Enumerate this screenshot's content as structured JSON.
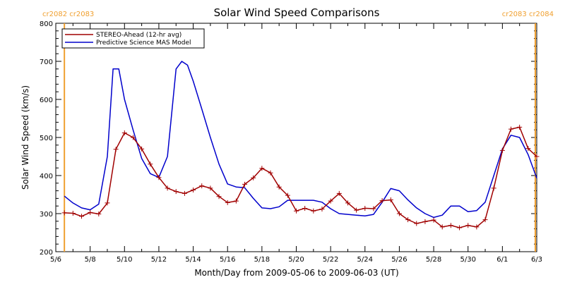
{
  "chart_data": {
    "type": "line",
    "title": "Solar Wind Speed Comparisons",
    "xlabel": "Month/Day from 2009-05-06 to 2009-06-03 (UT)",
    "ylabel": "Solar Wind Speed (km/s)",
    "xlim": [
      "2009-05-06",
      "2009-06-03"
    ],
    "ylim": [
      200,
      800
    ],
    "y_ticks": [
      200,
      300,
      400,
      500,
      600,
      700,
      800
    ],
    "x_ticks": [
      {
        "date": "2009-05-06",
        "label": "5/6"
      },
      {
        "date": "2009-05-08",
        "label": "5/8"
      },
      {
        "date": "2009-05-10",
        "label": "5/10"
      },
      {
        "date": "2009-05-12",
        "label": "5/12"
      },
      {
        "date": "2009-05-14",
        "label": "5/14"
      },
      {
        "date": "2009-05-16",
        "label": "5/16"
      },
      {
        "date": "2009-05-18",
        "label": "5/18"
      },
      {
        "date": "2009-05-20",
        "label": "5/20"
      },
      {
        "date": "2009-05-22",
        "label": "5/22"
      },
      {
        "date": "2009-05-24",
        "label": "5/24"
      },
      {
        "date": "2009-05-26",
        "label": "5/26"
      },
      {
        "date": "2009-05-28",
        "label": "5/28"
      },
      {
        "date": "2009-05-30",
        "label": "5/30"
      },
      {
        "date": "2009-06-01",
        "label": "6/1"
      },
      {
        "date": "2009-06-03",
        "label": "6/3"
      }
    ],
    "legend_position": "top-left",
    "grid": false,
    "carrington_markers": [
      {
        "date": "2009-05-06 12:00",
        "labels": [
          "cr2082",
          "cr2083"
        ],
        "color": "#f0a030"
      },
      {
        "date": "2009-06-02 22:00",
        "labels": [
          "cr2083",
          "cr2084"
        ],
        "color": "#f0a030"
      }
    ],
    "series": [
      {
        "name": "STEREO-Ahead (12-hr avg)",
        "color": "#a00000",
        "markers": "plus",
        "points": [
          [
            "2009-05-06 12:00",
            302
          ],
          [
            "2009-05-07 00:00",
            301
          ],
          [
            "2009-05-07 12:00",
            293
          ],
          [
            "2009-05-08 00:00",
            303
          ],
          [
            "2009-05-08 12:00",
            299
          ],
          [
            "2009-05-09 00:00",
            328
          ],
          [
            "2009-05-09 12:00",
            469
          ],
          [
            "2009-05-10 00:00",
            512
          ],
          [
            "2009-05-10 12:00",
            500
          ],
          [
            "2009-05-11 00:00",
            470
          ],
          [
            "2009-05-11 12:00",
            430
          ],
          [
            "2009-05-12 00:00",
            395
          ],
          [
            "2009-05-12 12:00",
            367
          ],
          [
            "2009-05-13 00:00",
            358
          ],
          [
            "2009-05-13 12:00",
            353
          ],
          [
            "2009-05-14 00:00",
            362
          ],
          [
            "2009-05-14 12:00",
            373
          ],
          [
            "2009-05-15 00:00",
            367
          ],
          [
            "2009-05-15 12:00",
            345
          ],
          [
            "2009-05-16 00:00",
            329
          ],
          [
            "2009-05-16 12:00",
            333
          ],
          [
            "2009-05-17 00:00",
            377
          ],
          [
            "2009-05-17 12:00",
            394
          ],
          [
            "2009-05-18 00:00",
            419
          ],
          [
            "2009-05-18 12:00",
            407
          ],
          [
            "2009-05-19 00:00",
            370
          ],
          [
            "2009-05-19 12:00",
            348
          ],
          [
            "2009-05-20 00:00",
            307
          ],
          [
            "2009-05-20 12:00",
            314
          ],
          [
            "2009-05-21 00:00",
            307
          ],
          [
            "2009-05-21 12:00",
            312
          ],
          [
            "2009-05-22 00:00",
            333
          ],
          [
            "2009-05-22 12:00",
            353
          ],
          [
            "2009-05-23 00:00",
            328
          ],
          [
            "2009-05-23 12:00",
            309
          ],
          [
            "2009-05-24 00:00",
            314
          ],
          [
            "2009-05-24 12:00",
            313
          ],
          [
            "2009-05-25 00:00",
            334
          ],
          [
            "2009-05-25 12:00",
            336
          ],
          [
            "2009-05-26 00:00",
            300
          ],
          [
            "2009-05-26 12:00",
            284
          ],
          [
            "2009-05-27 00:00",
            274
          ],
          [
            "2009-05-27 12:00",
            279
          ],
          [
            "2009-05-28 00:00",
            283
          ],
          [
            "2009-05-28 12:00",
            265
          ],
          [
            "2009-05-29 00:00",
            269
          ],
          [
            "2009-05-29 12:00",
            263
          ],
          [
            "2009-05-30 00:00",
            269
          ],
          [
            "2009-05-30 12:00",
            265
          ],
          [
            "2009-05-31 00:00",
            284
          ],
          [
            "2009-05-31 12:00",
            367
          ],
          [
            "2009-06-01 00:00",
            466
          ],
          [
            "2009-06-01 12:00",
            522
          ],
          [
            "2009-06-02 00:00",
            527
          ],
          [
            "2009-06-02 12:00",
            471
          ],
          [
            "2009-06-03 00:00",
            450
          ]
        ]
      },
      {
        "name": "Predictive Science MAS Model",
        "color": "#0000cc",
        "markers": "none",
        "points": [
          [
            "2009-05-06 12:00",
            346
          ],
          [
            "2009-05-07 00:00",
            328
          ],
          [
            "2009-05-07 12:00",
            315
          ],
          [
            "2009-05-08 00:00",
            310
          ],
          [
            "2009-05-08 12:00",
            325
          ],
          [
            "2009-05-09 00:00",
            450
          ],
          [
            "2009-05-09 08:00",
            680
          ],
          [
            "2009-05-09 16:00",
            680
          ],
          [
            "2009-05-10 00:00",
            600
          ],
          [
            "2009-05-10 12:00",
            520
          ],
          [
            "2009-05-11 00:00",
            445
          ],
          [
            "2009-05-11 12:00",
            405
          ],
          [
            "2009-05-12 00:00",
            395
          ],
          [
            "2009-05-12 12:00",
            450
          ],
          [
            "2009-05-13 00:00",
            680
          ],
          [
            "2009-05-13 08:00",
            700
          ],
          [
            "2009-05-13 16:00",
            690
          ],
          [
            "2009-05-14 00:00",
            648
          ],
          [
            "2009-05-14 12:00",
            575
          ],
          [
            "2009-05-15 00:00",
            500
          ],
          [
            "2009-05-15 12:00",
            430
          ],
          [
            "2009-05-16 00:00",
            378
          ],
          [
            "2009-05-16 12:00",
            370
          ],
          [
            "2009-05-17 00:00",
            368
          ],
          [
            "2009-05-17 12:00",
            340
          ],
          [
            "2009-05-18 00:00",
            315
          ],
          [
            "2009-05-18 12:00",
            313
          ],
          [
            "2009-05-19 00:00",
            318
          ],
          [
            "2009-05-19 12:00",
            335
          ],
          [
            "2009-05-20 00:00",
            335
          ],
          [
            "2009-05-20 12:00",
            335
          ],
          [
            "2009-05-21 00:00",
            335
          ],
          [
            "2009-05-21 12:00",
            330
          ],
          [
            "2009-05-22 00:00",
            313
          ],
          [
            "2009-05-22 12:00",
            300
          ],
          [
            "2009-05-23 00:00",
            298
          ],
          [
            "2009-05-23 12:00",
            296
          ],
          [
            "2009-05-24 00:00",
            294
          ],
          [
            "2009-05-24 12:00",
            298
          ],
          [
            "2009-05-25 00:00",
            330
          ],
          [
            "2009-05-25 12:00",
            366
          ],
          [
            "2009-05-26 00:00",
            360
          ],
          [
            "2009-05-26 12:00",
            336
          ],
          [
            "2009-05-27 00:00",
            315
          ],
          [
            "2009-05-27 12:00",
            300
          ],
          [
            "2009-05-28 00:00",
            290
          ],
          [
            "2009-05-28 12:00",
            296
          ],
          [
            "2009-05-29 00:00",
            320
          ],
          [
            "2009-05-29 12:00",
            320
          ],
          [
            "2009-05-30 00:00",
            305
          ],
          [
            "2009-05-30 12:00",
            308
          ],
          [
            "2009-05-31 00:00",
            330
          ],
          [
            "2009-05-31 12:00",
            400
          ],
          [
            "2009-06-01 00:00",
            470
          ],
          [
            "2009-06-01 12:00",
            506
          ],
          [
            "2009-06-02 00:00",
            500
          ],
          [
            "2009-06-02 12:00",
            455
          ],
          [
            "2009-06-03 00:00",
            393
          ]
        ]
      }
    ]
  }
}
